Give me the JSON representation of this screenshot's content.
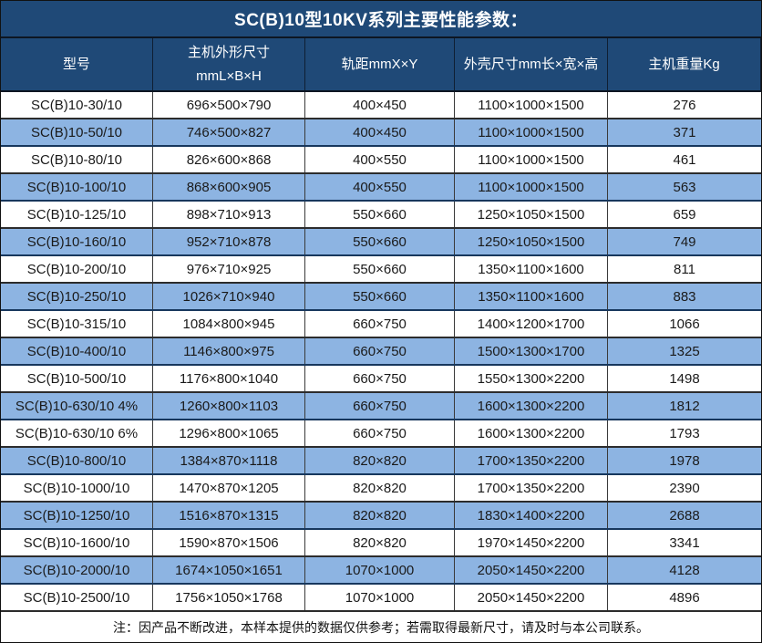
{
  "title": "SC(B)10型10KV系列主要性能参数：",
  "note": "注：因产品不断改进，本样本提供的数据仅供参考；若需取得最新尺寸，请及时与本公司联系。",
  "header": {
    "col1": "型号",
    "col2_line1": "主机外形尺寸",
    "col2_line2": "mmL×B×H",
    "col3": "轨距mmX×Y",
    "col4": "外壳尺寸mm长×宽×高",
    "col5": "主机重量Kg"
  },
  "colors": {
    "header_bg": "#1f4977",
    "alt_row_bg": "#8db4e2",
    "header_text": "#ffffff",
    "body_text": "#1a1a1a",
    "border": "#2c2c2c"
  },
  "chart_data": {
    "type": "table",
    "title": "SC(B)10型10KV系列主要性能参数：",
    "columns": [
      "型号",
      "主机外形尺寸 mmL×B×H",
      "轨距mmX×Y",
      "外壳尺寸mm长×宽×高",
      "主机重量Kg"
    ],
    "rows": [
      [
        "SC(B)10-30/10",
        "696×500×790",
        "400×450",
        "1100×1000×1500",
        "276"
      ],
      [
        "SC(B)10-50/10",
        "746×500×827",
        "400×450",
        "1100×1000×1500",
        "371"
      ],
      [
        "SC(B)10-80/10",
        "826×600×868",
        "400×550",
        "1100×1000×1500",
        "461"
      ],
      [
        "SC(B)10-100/10",
        "868×600×905",
        "400×550",
        "1100×1000×1500",
        "563"
      ],
      [
        "SC(B)10-125/10",
        "898×710×913",
        "550×660",
        "1250×1050×1500",
        "659"
      ],
      [
        "SC(B)10-160/10",
        "952×710×878",
        "550×660",
        "1250×1050×1500",
        "749"
      ],
      [
        "SC(B)10-200/10",
        "976×710×925",
        "550×660",
        "1350×1100×1600",
        "811"
      ],
      [
        "SC(B)10-250/10",
        "1026×710×940",
        "550×660",
        "1350×1100×1600",
        "883"
      ],
      [
        "SC(B)10-315/10",
        "1084×800×945",
        "660×750",
        "1400×1200×1700",
        "1066"
      ],
      [
        "SC(B)10-400/10",
        "1146×800×975",
        "660×750",
        "1500×1300×1700",
        "1325"
      ],
      [
        "SC(B)10-500/10",
        "1176×800×1040",
        "660×750",
        "1550×1300×2200",
        "1498"
      ],
      [
        "SC(B)10-630/10 4%",
        "1260×800×1103",
        "660×750",
        "1600×1300×2200",
        "1812"
      ],
      [
        "SC(B)10-630/10 6%",
        "1296×800×1065",
        "660×750",
        "1600×1300×2200",
        "1793"
      ],
      [
        "SC(B)10-800/10",
        "1384×870×1118",
        "820×820",
        "1700×1350×2200",
        "1978"
      ],
      [
        "SC(B)10-1000/10",
        "1470×870×1205",
        "820×820",
        "1700×1350×2200",
        "2390"
      ],
      [
        "SC(B)10-1250/10",
        "1516×870×1315",
        "820×820",
        "1830×1400×2200",
        "2688"
      ],
      [
        "SC(B)10-1600/10",
        "1590×870×1506",
        "820×820",
        "1970×1450×2200",
        "3341"
      ],
      [
        "SC(B)10-2000/10",
        "1674×1050×1651",
        "1070×1000",
        "2050×1450×2200",
        "4128"
      ],
      [
        "SC(B)10-2500/10",
        "1756×1050×1768",
        "1070×1000",
        "2050×1450×2200",
        "4896"
      ]
    ]
  }
}
